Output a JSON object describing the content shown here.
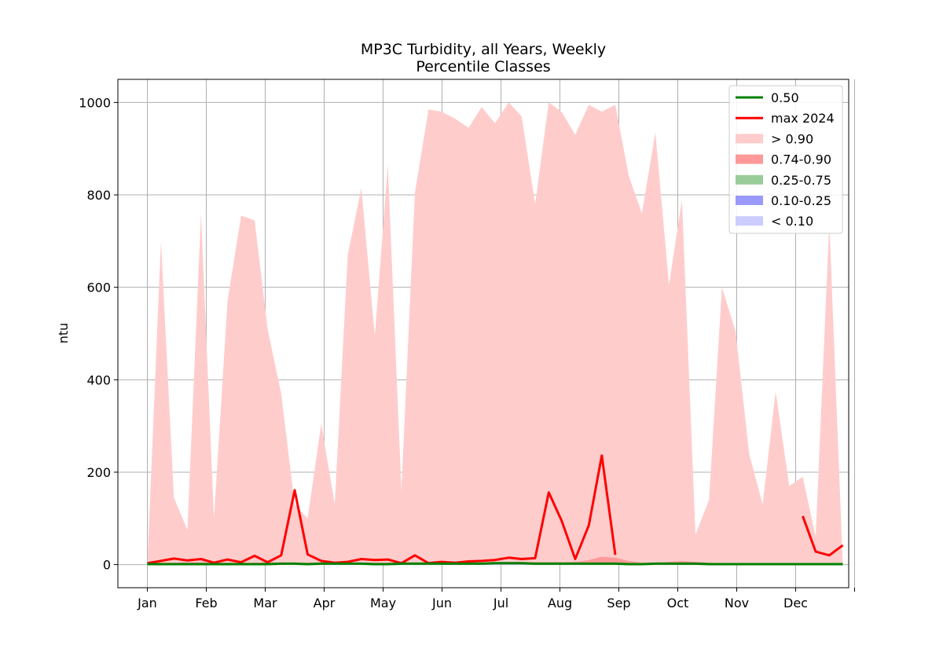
{
  "chart_data": {
    "type": "area",
    "title": "MP3C Turbidity, all Years, Weekly",
    "subtitle": "Percentile Classes",
    "xlabel": "",
    "ylabel": "ntu",
    "xlim": [
      0.5,
      12.9
    ],
    "ylim": [
      -50,
      1050
    ],
    "grid": true,
    "legend_position": "top-right",
    "x_ticks": [
      {
        "value": 1,
        "label": "Jan"
      },
      {
        "value": 2,
        "label": "Feb"
      },
      {
        "value": 3,
        "label": "Mar"
      },
      {
        "value": 4,
        "label": "Apr"
      },
      {
        "value": 5,
        "label": "May"
      },
      {
        "value": 6,
        "label": "Jun"
      },
      {
        "value": 7,
        "label": "Jul"
      },
      {
        "value": 8,
        "label": "Aug"
      },
      {
        "value": 9,
        "label": "Sep"
      },
      {
        "value": 10,
        "label": "Oct"
      },
      {
        "value": 11,
        "label": "Nov"
      },
      {
        "value": 12,
        "label": "Dec"
      },
      {
        "value": 13,
        "label": ""
      }
    ],
    "y_ticks": [
      0,
      200,
      400,
      600,
      800,
      1000
    ],
    "legend": [
      {
        "label": "0.50",
        "kind": "line",
        "color": "#008000"
      },
      {
        "label": "max 2024",
        "kind": "line",
        "color": "#ff0000"
      },
      {
        "label": "> 0.90",
        "kind": "patch",
        "color": "#ffcccc"
      },
      {
        "label": "0.74-0.90",
        "kind": "patch",
        "color": "#ff9999"
      },
      {
        "label": "0.25-0.75",
        "kind": "patch",
        "color": "#99cc99"
      },
      {
        "label": "0.10-0.25",
        "kind": "patch",
        "color": "#9999ff"
      },
      {
        "label": "< 0.10",
        "kind": "patch",
        "color": "#ccccff"
      }
    ],
    "x": [
      1.0,
      1.23,
      1.45,
      1.68,
      1.91,
      2.13,
      2.36,
      2.59,
      2.82,
      3.04,
      3.27,
      3.5,
      3.72,
      3.95,
      4.18,
      4.4,
      4.63,
      4.86,
      5.08,
      5.31,
      5.54,
      5.77,
      5.99,
      6.22,
      6.45,
      6.67,
      6.9,
      7.13,
      7.35,
      7.58,
      7.81,
      8.03,
      8.26,
      8.49,
      8.71,
      8.94,
      9.17,
      9.39,
      9.62,
      9.85,
      10.07,
      10.3,
      10.53,
      10.75,
      10.98,
      11.21,
      11.44,
      11.66,
      11.89,
      12.12,
      12.34,
      12.57,
      12.8
    ],
    "series": [
      {
        "name": "> 0.90",
        "color": "#ffcccc",
        "values": [
          0,
          700,
          145,
          75,
          760,
          100,
          570,
          755,
          745,
          510,
          370,
          130,
          100,
          305,
          130,
          670,
          815,
          495,
          865,
          160,
          805,
          985,
          980,
          965,
          945,
          990,
          955,
          1000,
          970,
          780,
          1000,
          980,
          930,
          995,
          980,
          995,
          840,
          760,
          935,
          605,
          790,
          65,
          140,
          600,
          505,
          240,
          130,
          375,
          170,
          190,
          60,
          740,
          0
        ]
      },
      {
        "name": "0.74-0.90",
        "color": "#ff9999",
        "values": [
          4,
          4,
          4,
          5,
          5,
          4,
          4,
          4,
          4,
          5,
          4,
          3,
          4,
          4,
          4,
          4,
          4,
          4,
          4,
          4,
          4,
          4,
          4,
          4,
          4,
          4,
          5,
          5,
          5,
          5,
          5,
          5,
          6,
          10,
          17,
          15,
          8,
          4,
          4,
          6,
          8,
          6,
          4,
          3,
          3,
          3,
          3,
          3,
          3,
          3,
          3,
          3,
          3
        ]
      },
      {
        "name": "0.25-0.75",
        "color": "#99cc99",
        "values": [
          3,
          3,
          3,
          3,
          3,
          3,
          3,
          3,
          3,
          3,
          3,
          3,
          3,
          3,
          3,
          3,
          3,
          3,
          3,
          3,
          3,
          3,
          3,
          3,
          3,
          3,
          3,
          3,
          3,
          3,
          3,
          3,
          3,
          3,
          3,
          3,
          3,
          3,
          3,
          3,
          3,
          3,
          3,
          3,
          3,
          3,
          3,
          3,
          3,
          3,
          3,
          3,
          3
        ]
      },
      {
        "name": "0.10-0.25",
        "color": "#9999ff",
        "values": [
          1,
          1,
          1,
          1,
          1,
          1,
          1,
          1,
          1,
          1,
          1,
          1,
          1,
          1,
          1,
          1,
          1,
          1,
          1,
          1,
          1,
          1,
          1,
          1,
          1,
          1,
          1,
          1,
          1,
          1,
          1,
          1,
          1,
          1,
          1,
          1,
          1,
          1,
          1,
          1,
          1,
          1,
          1,
          1,
          1,
          1,
          1,
          1,
          1,
          1,
          1,
          1,
          1
        ]
      },
      {
        "name": "< 0.10",
        "color": "#ccccff",
        "values": [
          0.5,
          0.5,
          0.5,
          0.5,
          0.5,
          0.5,
          0.5,
          0.5,
          0.5,
          0.5,
          0.5,
          0.5,
          0.5,
          0.5,
          0.5,
          0.5,
          0.5,
          0.5,
          0.5,
          0.5,
          0.5,
          0.5,
          0.5,
          0.5,
          0.5,
          0.5,
          0.5,
          0.5,
          0.5,
          0.5,
          0.5,
          0.5,
          0.5,
          0.5,
          0.5,
          0.5,
          0.5,
          0.5,
          0.5,
          0.5,
          0.5,
          0.5,
          0.5,
          0.5,
          0.5,
          0.5,
          0.5,
          0.5,
          0.5,
          0.5,
          0.5,
          0.5,
          0.5
        ]
      },
      {
        "name": "0.50",
        "color": "#008000",
        "values": [
          1,
          1,
          1,
          1,
          1,
          1,
          1,
          1,
          1,
          1,
          2,
          2,
          1,
          2,
          2,
          2,
          2,
          1,
          1,
          2,
          2,
          2,
          2,
          2,
          2,
          2,
          3,
          3,
          3,
          2,
          2,
          2,
          2,
          2,
          2,
          2,
          1,
          1,
          2,
          2,
          2,
          2,
          1,
          1,
          1,
          1,
          1,
          1,
          1,
          1,
          1,
          1,
          1
        ]
      },
      {
        "name": "max 2024",
        "color": "#ff0000",
        "values": [
          3,
          8,
          13,
          9,
          12,
          4,
          11,
          5,
          19,
          5,
          20,
          161,
          22,
          8,
          4,
          6,
          12,
          10,
          11,
          3,
          20,
          3,
          6,
          4,
          7,
          8,
          10,
          15,
          12,
          14,
          156,
          95,
          12,
          85,
          236,
          21,
          null,
          null,
          null,
          null,
          null,
          null,
          null,
          null,
          null,
          null,
          null,
          null,
          null,
          105,
          28,
          20,
          42
        ]
      }
    ]
  }
}
